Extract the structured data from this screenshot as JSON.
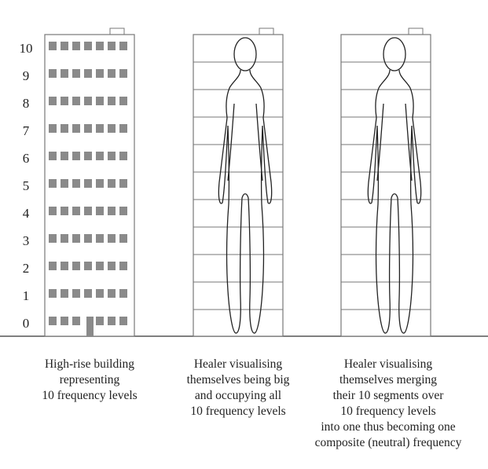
{
  "levels": [
    "10",
    "9",
    "8",
    "7",
    "6",
    "5",
    "4",
    "3",
    "2",
    "1",
    "0"
  ],
  "captions": {
    "building": [
      "High-rise building",
      "representing",
      "10 frequency levels"
    ],
    "healer_big": [
      "Healer visualising",
      "themselves being big",
      "and occupying all",
      "10 frequency levels"
    ],
    "healer_merged": [
      "Healer visualising",
      "themselves merging",
      "their 10 segments over",
      "10 frequency levels",
      "into one thus becoming one",
      "composite (neutral) frequency"
    ]
  },
  "colors": {
    "window": "#8a8a8a",
    "line": "#777777",
    "ground": "#555555",
    "text": "#222222"
  }
}
